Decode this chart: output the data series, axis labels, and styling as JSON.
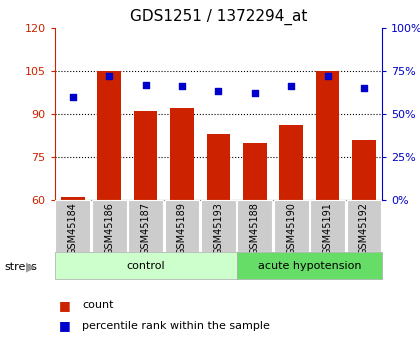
{
  "title": "GDS1251 / 1372294_at",
  "samples": [
    "GSM45184",
    "GSM45186",
    "GSM45187",
    "GSM45189",
    "GSM45193",
    "GSM45188",
    "GSM45190",
    "GSM45191",
    "GSM45192"
  ],
  "count_values": [
    61,
    105,
    91,
    92,
    83,
    80,
    86,
    105,
    81
  ],
  "percentile_values": [
    60,
    72,
    67,
    66,
    63,
    62,
    66,
    72,
    65
  ],
  "ylim_left": [
    60,
    120
  ],
  "ylim_right": [
    0,
    100
  ],
  "yticks_left": [
    60,
    75,
    90,
    105,
    120
  ],
  "yticks_right": [
    0,
    25,
    50,
    75,
    100
  ],
  "ytick_labels_right": [
    "0%",
    "25%",
    "50%",
    "75%",
    "100%"
  ],
  "bar_color": "#cc2200",
  "dot_color": "#0000cc",
  "bar_width": 0.65,
  "n_control": 5,
  "n_acute": 4,
  "control_label": "control",
  "acute_label": "acute hypotension",
  "stress_label": "stress",
  "legend_count": "count",
  "legend_pct": "percentile rank within the sample",
  "control_bg": "#ccffcc",
  "acute_bg": "#66dd66",
  "title_fontsize": 11,
  "axis_fontsize": 8,
  "label_fontsize": 7,
  "group_fontsize": 8,
  "legend_fontsize": 8
}
